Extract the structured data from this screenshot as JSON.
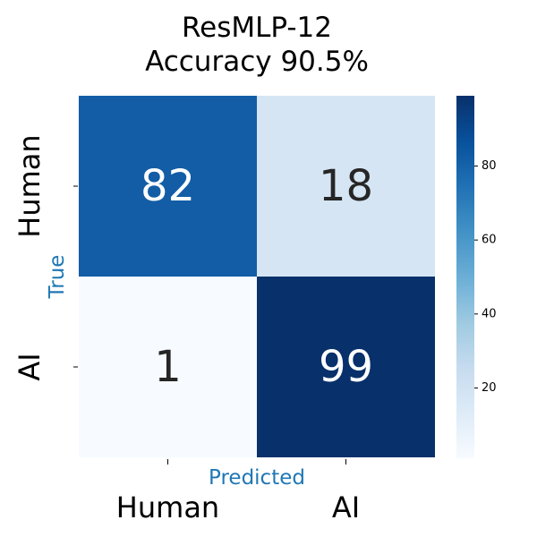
{
  "chart_data": {
    "type": "heatmap",
    "title": "ResMLP-12",
    "subtitle": "Accuracy 90.5%",
    "xlabel": "Predicted",
    "ylabel": "True",
    "x_categories": [
      "Human",
      "AI"
    ],
    "y_categories": [
      "Human",
      "AI"
    ],
    "values": [
      [
        82,
        18
      ],
      [
        1,
        99
      ]
    ],
    "colormap": "Blues",
    "color_range": [
      1,
      99
    ],
    "colorbar_ticks": [
      20,
      40,
      60,
      80
    ],
    "axis_title_color": "#1f77b4"
  }
}
